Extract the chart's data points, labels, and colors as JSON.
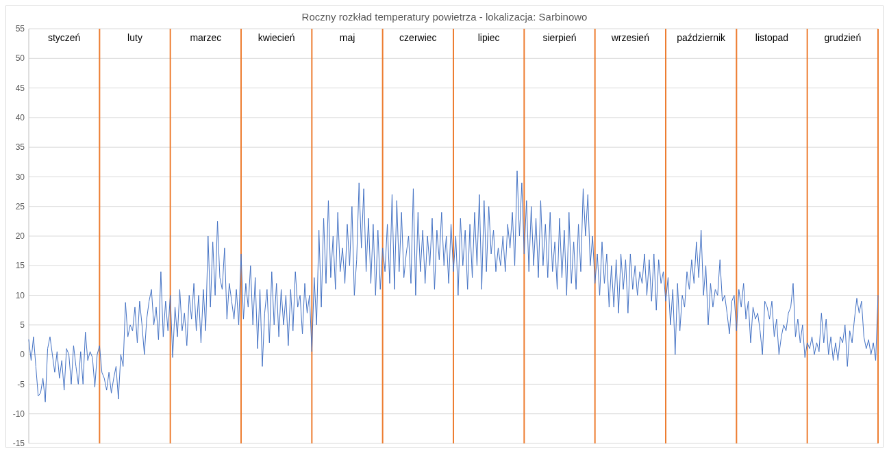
{
  "chart_data": {
    "type": "line",
    "title": "Roczny rozkład temperatury powietrza - lokalizacja: Sarbinowo",
    "categories": [
      null,
      null,
      null,
      null,
      null,
      null,
      null,
      null,
      null,
      null,
      null,
      null,
      null,
      null,
      null,
      null,
      null,
      null,
      null,
      null,
      null,
      null,
      null,
      null,
      null,
      null,
      null,
      null,
      null,
      null,
      null,
      null,
      null,
      null,
      null,
      null,
      null,
      null,
      null,
      null,
      null,
      null,
      null,
      null,
      null,
      null,
      null,
      null,
      null,
      null,
      null,
      null,
      null,
      null,
      null,
      null,
      null,
      null,
      null,
      null,
      null,
      null,
      null,
      null,
      null,
      null,
      null,
      null,
      null,
      null,
      null,
      null,
      null,
      null,
      null,
      null,
      null,
      null,
      null,
      null,
      null,
      null,
      null,
      null,
      null,
      null,
      null,
      null,
      null,
      null,
      null,
      null,
      null,
      null,
      null,
      null,
      null,
      null,
      null,
      null,
      null,
      null,
      null,
      null,
      null,
      null,
      null,
      null,
      null,
      null,
      null,
      null,
      null,
      null,
      null,
      null,
      null,
      null,
      null,
      null,
      null,
      null,
      null,
      null,
      null,
      null,
      null,
      null,
      null,
      null,
      null,
      null,
      null,
      null,
      null,
      null,
      null,
      null,
      null,
      null,
      null,
      null,
      null,
      null,
      null,
      null,
      null,
      null,
      null,
      null,
      null,
      null,
      null,
      null,
      null,
      null,
      null,
      null,
      null,
      null,
      null,
      null,
      null,
      null,
      null,
      null,
      null,
      null,
      null,
      null,
      null,
      null,
      null,
      null,
      null,
      null,
      null,
      null,
      null,
      null,
      null,
      null,
      null,
      null,
      null,
      null,
      null,
      null,
      null,
      null,
      null,
      null,
      null,
      null,
      null,
      null,
      null,
      null,
      null,
      null,
      null,
      null,
      null,
      null,
      null,
      null,
      null,
      null,
      null,
      null,
      null,
      null,
      null,
      null,
      null,
      null,
      null,
      null,
      null,
      null,
      null,
      null,
      null,
      null,
      null,
      null,
      null,
      null,
      null,
      null,
      null,
      null,
      null,
      null,
      null,
      null,
      null,
      null,
      null,
      null,
      null,
      null,
      null,
      null,
      null,
      null,
      null,
      null,
      null,
      null,
      null,
      null,
      null,
      null,
      null,
      null,
      null,
      null,
      null,
      null,
      null,
      null,
      null,
      null,
      null,
      null,
      null,
      null,
      null,
      null,
      null,
      null,
      null,
      null,
      null,
      null,
      null,
      null,
      null,
      null,
      null,
      null,
      null,
      null,
      null,
      null,
      null,
      null,
      null,
      null,
      null,
      null,
      null,
      null,
      null,
      null,
      null,
      null,
      null,
      null,
      null,
      null,
      null,
      null,
      null,
      null,
      null,
      null,
      null,
      null,
      null,
      null,
      null,
      null,
      null,
      null,
      null,
      null,
      null,
      null,
      null,
      null,
      null,
      null,
      null,
      null,
      null,
      null,
      null,
      null,
      null,
      null,
      null,
      null,
      null,
      null,
      null,
      null,
      null,
      null,
      null,
      null,
      null,
      null,
      null,
      null,
      null,
      null,
      null,
      null,
      null,
      null,
      null,
      null,
      null,
      null,
      null,
      null,
      null,
      null,
      null
    ],
    "ylim": [
      -15,
      55
    ],
    "yticks": [
      -15,
      -10,
      -5,
      0,
      5,
      10,
      15,
      20,
      25,
      30,
      35,
      40,
      45,
      50,
      55
    ],
    "grid": "y",
    "tick_labels": "y",
    "annotations": [
      "styczeń",
      "luty",
      "marzec",
      "kwiecień",
      "maj",
      "czerwiec",
      "lipiec",
      "sierpień",
      "wrzesień",
      "październik",
      "listopad",
      "grudzień"
    ],
    "series": [
      {
        "color": "#4472c4",
        "values": [
          2.5,
          -1,
          3,
          -2,
          -7,
          -6.5,
          -4,
          -8,
          1,
          3,
          0,
          -3,
          0.5,
          -4,
          -1,
          -6,
          1,
          0,
          -5,
          1.5,
          -2,
          -5,
          0.5,
          -5,
          3.8,
          -1,
          0.5,
          -0.5,
          -5.5,
          0,
          1.5,
          -3,
          -4,
          -6,
          -3,
          -6.5,
          -4,
          -2,
          -7.5,
          0,
          -2,
          8.8,
          3,
          5,
          4,
          8,
          2,
          9,
          5,
          0,
          6,
          9,
          11,
          5,
          8,
          2.5,
          14,
          3,
          9,
          4,
          10,
          -0.5,
          8,
          3,
          11,
          4,
          7,
          1.5,
          10,
          6,
          12,
          4,
          10,
          2,
          11,
          4,
          20,
          8,
          19,
          10,
          22.5,
          13,
          11,
          18,
          6,
          12,
          9,
          6,
          11,
          5,
          17,
          6,
          12,
          8,
          15,
          5,
          13,
          1,
          11,
          -2,
          7,
          11,
          2,
          14,
          5,
          12,
          3,
          11,
          5,
          10,
          1.5,
          11,
          4,
          14,
          8,
          10,
          3.5,
          12,
          7,
          10,
          0.5,
          13,
          5,
          21,
          8,
          23,
          12,
          26,
          13,
          20,
          11,
          24,
          14,
          18,
          12,
          22,
          15,
          25,
          10,
          16,
          29,
          18,
          28,
          14,
          23,
          12,
          22,
          10,
          21,
          11,
          18,
          14,
          22,
          12,
          27,
          11,
          26,
          14,
          24,
          13,
          17,
          20,
          12,
          28,
          10,
          24,
          14,
          21,
          12,
          20,
          15,
          23,
          11,
          21,
          16,
          24,
          15,
          20,
          12,
          22,
          14,
          20,
          10,
          23,
          15,
          21,
          11,
          22,
          13,
          24,
          15,
          27,
          11,
          26,
          14,
          25,
          17,
          21,
          14,
          18,
          15,
          20,
          14,
          22,
          18,
          24,
          15,
          31,
          20,
          29,
          17,
          26,
          14,
          25,
          15,
          23,
          13,
          26,
          15,
          22,
          13,
          24,
          14,
          19,
          11,
          23,
          13,
          21,
          10,
          24,
          12,
          19,
          11,
          22,
          14,
          28,
          20,
          27,
          15,
          20,
          12,
          17,
          10,
          19,
          12,
          17,
          8,
          15,
          8,
          16,
          7,
          17,
          11,
          16,
          7,
          17,
          11,
          15,
          10,
          14,
          12,
          17,
          10,
          16,
          9,
          17,
          7.5,
          16,
          12,
          14,
          9,
          13,
          5,
          11,
          0,
          12,
          4,
          10,
          8,
          14,
          11,
          16,
          12,
          19,
          13,
          21,
          10,
          15,
          5,
          12,
          8,
          11,
          10,
          16,
          9,
          10,
          7,
          3.5,
          9,
          10,
          4,
          11,
          8,
          12,
          6,
          9,
          2,
          8,
          6,
          7,
          4,
          0,
          9,
          8,
          6,
          9,
          3,
          6,
          0,
          3,
          5,
          4,
          7,
          8,
          12,
          3,
          6,
          2,
          5,
          -0.5,
          2,
          1,
          3,
          0,
          2,
          0.5,
          7,
          2,
          6,
          0,
          3,
          -1,
          2,
          -1,
          3,
          2,
          5,
          -2,
          4,
          2,
          6,
          9.5,
          7,
          9,
          3,
          1,
          2.5,
          0,
          2,
          -1,
          10
        ]
      }
    ]
  }
}
